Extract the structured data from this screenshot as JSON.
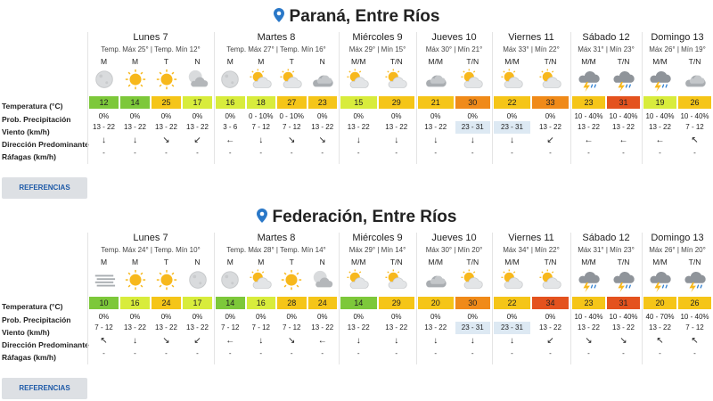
{
  "colors": {
    "temp_green": "#7dc83a",
    "temp_lime": "#d8ec3c",
    "temp_yellow": "#f5c518",
    "temp_orange": "#f08a19",
    "temp_red": "#e4521e",
    "wind_highlight": "#dde9f3",
    "link": "#1e5aa8",
    "pin": "#2a78c8"
  },
  "row_labels": {
    "temp": "Temperatura (°C)",
    "prob": "Prob. Precipitación",
    "wind": "Viento (km/h)",
    "dir": "Dirección Predominante",
    "gust": "Ráfagas (km/h)"
  },
  "button_label": "REFERENCIAS",
  "locations": [
    {
      "name": "Paraná, Entre Ríos",
      "days": [
        {
          "name": "Lunes 7",
          "temps": "Temp. Máx 25° | Temp. Mín 12°",
          "periods": [
            {
              "label": "M",
              "icon": "moon",
              "temp": "12",
              "tc": "temp_green",
              "prob": "0%",
              "wind": "13 - 22",
              "hl": false,
              "dir": "↓",
              "gust": "-"
            },
            {
              "label": "M",
              "icon": "sun",
              "temp": "14",
              "tc": "temp_green",
              "prob": "0%",
              "wind": "13 - 22",
              "hl": false,
              "dir": "↓",
              "gust": "-"
            },
            {
              "label": "T",
              "icon": "sun",
              "temp": "25",
              "tc": "temp_yellow",
              "prob": "0%",
              "wind": "13 - 22",
              "hl": false,
              "dir": "↘",
              "gust": "-"
            },
            {
              "label": "N",
              "icon": "moon-cloud",
              "temp": "17",
              "tc": "temp_lime",
              "prob": "0%",
              "wind": "13 - 22",
              "hl": false,
              "dir": "↙",
              "gust": "-"
            }
          ]
        },
        {
          "name": "Martes 8",
          "temps": "Temp. Máx 27° | Temp. Mín 16°",
          "periods": [
            {
              "label": "M",
              "icon": "moon",
              "temp": "16",
              "tc": "temp_lime",
              "prob": "0%",
              "wind": "3 - 6",
              "hl": false,
              "dir": "←",
              "gust": "-"
            },
            {
              "label": "M",
              "icon": "sun-cloud",
              "temp": "18",
              "tc": "temp_lime",
              "prob": "0 - 10%",
              "wind": "7 - 12",
              "hl": false,
              "dir": "↓",
              "gust": "-"
            },
            {
              "label": "T",
              "icon": "sun-cloud",
              "temp": "27",
              "tc": "temp_yellow",
              "prob": "0 - 10%",
              "wind": "7 - 12",
              "hl": false,
              "dir": "↘",
              "gust": "-"
            },
            {
              "label": "N",
              "icon": "cloud",
              "temp": "23",
              "tc": "temp_yellow",
              "prob": "0%",
              "wind": "13 - 22",
              "hl": false,
              "dir": "↘",
              "gust": "-"
            }
          ]
        },
        {
          "name": "Miércoles 9",
          "temps": "Máx 29° | Mín 15°",
          "periods": [
            {
              "label": "M/M",
              "icon": "sun-cloud",
              "temp": "15",
              "tc": "temp_lime",
              "prob": "0%",
              "wind": "13 - 22",
              "hl": false,
              "dir": "↓",
              "gust": "-"
            },
            {
              "label": "T/N",
              "icon": "sun-cloud",
              "temp": "29",
              "tc": "temp_yellow",
              "prob": "0%",
              "wind": "13 - 22",
              "hl": false,
              "dir": "↓",
              "gust": "-"
            }
          ]
        },
        {
          "name": "Jueves 10",
          "temps": "Máx 30° | Mín 21°",
          "periods": [
            {
              "label": "M/M",
              "icon": "cloud",
              "temp": "21",
              "tc": "temp_yellow",
              "prob": "0%",
              "wind": "13 - 22",
              "hl": false,
              "dir": "↓",
              "gust": "-"
            },
            {
              "label": "T/N",
              "icon": "sun-cloud",
              "temp": "30",
              "tc": "temp_orange",
              "prob": "0%",
              "wind": "23 - 31",
              "hl": true,
              "dir": "↓",
              "gust": "-"
            }
          ]
        },
        {
          "name": "Viernes 11",
          "temps": "Máx 33° | Mín 22°",
          "periods": [
            {
              "label": "M/M",
              "icon": "sun-cloud",
              "temp": "22",
              "tc": "temp_yellow",
              "prob": "0%",
              "wind": "23 - 31",
              "hl": true,
              "dir": "↓",
              "gust": "-"
            },
            {
              "label": "T/N",
              "icon": "sun-cloud",
              "temp": "33",
              "tc": "temp_orange",
              "prob": "0%",
              "wind": "13 - 22",
              "hl": false,
              "dir": "↙",
              "gust": "-"
            }
          ]
        },
        {
          "name": "Sábado 12",
          "temps": "Máx 31° | Mín 23°",
          "periods": [
            {
              "label": "M/M",
              "icon": "storm",
              "temp": "23",
              "tc": "temp_yellow",
              "prob": "10 - 40%",
              "wind": "13 - 22",
              "hl": false,
              "dir": "←",
              "gust": "-"
            },
            {
              "label": "T/N",
              "icon": "storm",
              "temp": "31",
              "tc": "temp_red",
              "prob": "10 - 40%",
              "wind": "13 - 22",
              "hl": false,
              "dir": "←",
              "gust": "-"
            }
          ]
        },
        {
          "name": "Domingo 13",
          "temps": "Máx 26° | Mín 19°",
          "periods": [
            {
              "label": "M/M",
              "icon": "storm",
              "temp": "19",
              "tc": "temp_lime",
              "prob": "10 - 40%",
              "wind": "13 - 22",
              "hl": false,
              "dir": "←",
              "gust": "-"
            },
            {
              "label": "T/N",
              "icon": "cloud",
              "temp": "26",
              "tc": "temp_yellow",
              "prob": "10 - 40%",
              "wind": "7 - 12",
              "hl": false,
              "dir": "↖",
              "gust": "-"
            }
          ]
        }
      ]
    },
    {
      "name": "Federación, Entre Ríos",
      "days": [
        {
          "name": "Lunes 7",
          "temps": "Temp. Máx 24° | Temp. Mín 10°",
          "periods": [
            {
              "label": "M",
              "icon": "fog",
              "temp": "10",
              "tc": "temp_green",
              "prob": "0%",
              "wind": "7 - 12",
              "hl": false,
              "dir": "↖",
              "gust": "-"
            },
            {
              "label": "M",
              "icon": "sun",
              "temp": "16",
              "tc": "temp_lime",
              "prob": "0%",
              "wind": "13 - 22",
              "hl": false,
              "dir": "↓",
              "gust": "-"
            },
            {
              "label": "T",
              "icon": "sun",
              "temp": "24",
              "tc": "temp_yellow",
              "prob": "0%",
              "wind": "13 - 22",
              "hl": false,
              "dir": "↘",
              "gust": "-"
            },
            {
              "label": "N",
              "icon": "moon",
              "temp": "17",
              "tc": "temp_lime",
              "prob": "0%",
              "wind": "13 - 22",
              "hl": false,
              "dir": "↙",
              "gust": "-"
            }
          ]
        },
        {
          "name": "Martes 8",
          "temps": "Temp. Máx 28° | Temp. Mín 14°",
          "periods": [
            {
              "label": "M",
              "icon": "moon",
              "temp": "14",
              "tc": "temp_green",
              "prob": "0%",
              "wind": "7 - 12",
              "hl": false,
              "dir": "←",
              "gust": "-"
            },
            {
              "label": "M",
              "icon": "sun-cloud",
              "temp": "16",
              "tc": "temp_lime",
              "prob": "0%",
              "wind": "7 - 12",
              "hl": false,
              "dir": "↓",
              "gust": "-"
            },
            {
              "label": "T",
              "icon": "sun",
              "temp": "28",
              "tc": "temp_yellow",
              "prob": "0%",
              "wind": "7 - 12",
              "hl": false,
              "dir": "↘",
              "gust": "-"
            },
            {
              "label": "N",
              "icon": "moon-cloud",
              "temp": "24",
              "tc": "temp_yellow",
              "prob": "0%",
              "wind": "13 - 22",
              "hl": false,
              "dir": "←",
              "gust": "-"
            }
          ]
        },
        {
          "name": "Miércoles 9",
          "temps": "Máx 29° | Mín 14°",
          "periods": [
            {
              "label": "M/M",
              "icon": "sun-cloud",
              "temp": "14",
              "tc": "temp_green",
              "prob": "0%",
              "wind": "13 - 22",
              "hl": false,
              "dir": "↓",
              "gust": "-"
            },
            {
              "label": "T/N",
              "icon": "sun-cloud",
              "temp": "29",
              "tc": "temp_yellow",
              "prob": "0%",
              "wind": "13 - 22",
              "hl": false,
              "dir": "↓",
              "gust": "-"
            }
          ]
        },
        {
          "name": "Jueves 10",
          "temps": "Máx 30° | Mín 20°",
          "periods": [
            {
              "label": "M/M",
              "icon": "cloud",
              "temp": "20",
              "tc": "temp_yellow",
              "prob": "0%",
              "wind": "13 - 22",
              "hl": false,
              "dir": "↓",
              "gust": "-"
            },
            {
              "label": "T/N",
              "icon": "sun-cloud",
              "temp": "30",
              "tc": "temp_orange",
              "prob": "0%",
              "wind": "23 - 31",
              "hl": true,
              "dir": "↓",
              "gust": "-"
            }
          ]
        },
        {
          "name": "Viernes 11",
          "temps": "Máx 34° | Mín 22°",
          "periods": [
            {
              "label": "M/M",
              "icon": "sun-cloud",
              "temp": "22",
              "tc": "temp_yellow",
              "prob": "0%",
              "wind": "23 - 31",
              "hl": true,
              "dir": "↓",
              "gust": "-"
            },
            {
              "label": "T/N",
              "icon": "sun-cloud",
              "temp": "34",
              "tc": "temp_red",
              "prob": "0%",
              "wind": "13 - 22",
              "hl": false,
              "dir": "↙",
              "gust": "-"
            }
          ]
        },
        {
          "name": "Sábado 12",
          "temps": "Máx 31° | Mín 23°",
          "periods": [
            {
              "label": "M/M",
              "icon": "storm",
              "temp": "23",
              "tc": "temp_yellow",
              "prob": "10 - 40%",
              "wind": "13 - 22",
              "hl": false,
              "dir": "↘",
              "gust": "-"
            },
            {
              "label": "T/N",
              "icon": "storm",
              "temp": "31",
              "tc": "temp_red",
              "prob": "10 - 40%",
              "wind": "13 - 22",
              "hl": false,
              "dir": "↘",
              "gust": "-"
            }
          ]
        },
        {
          "name": "Domingo 13",
          "temps": "Máx 26° | Mín 20°",
          "periods": [
            {
              "label": "M/M",
              "icon": "storm",
              "temp": "20",
              "tc": "temp_yellow",
              "prob": "40 - 70%",
              "wind": "13 - 22",
              "hl": false,
              "dir": "↖",
              "gust": "-"
            },
            {
              "label": "T/N",
              "icon": "storm",
              "temp": "26",
              "tc": "temp_yellow",
              "prob": "10 - 40%",
              "wind": "7 - 12",
              "hl": false,
              "dir": "↖",
              "gust": "-"
            }
          ]
        }
      ]
    }
  ]
}
